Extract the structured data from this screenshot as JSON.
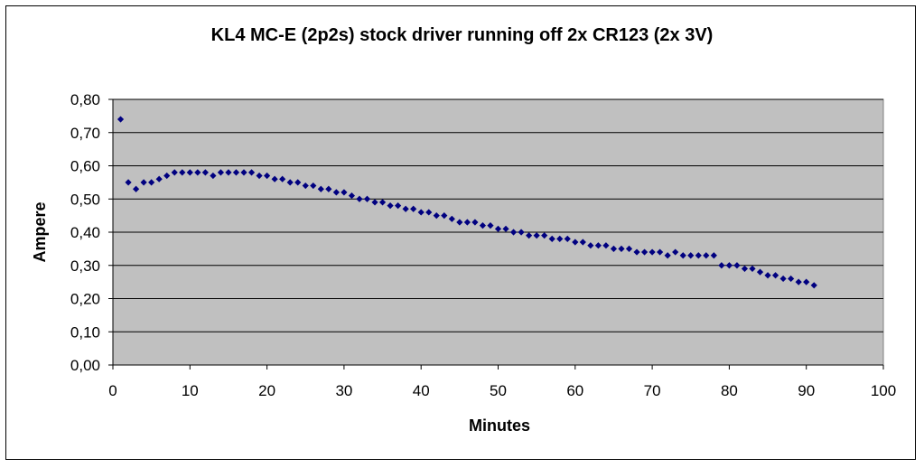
{
  "chart_data": {
    "type": "scatter",
    "title": "KL4  MC-E (2p2s) stock driver running off 2x CR123 (2x 3V)",
    "xlabel": "Minutes",
    "ylabel": "Ampere",
    "xlim": [
      0,
      100
    ],
    "ylim": [
      0,
      0.8
    ],
    "x_ticks": [
      "0",
      "10",
      "20",
      "30",
      "40",
      "50",
      "60",
      "70",
      "80",
      "90",
      "100"
    ],
    "y_ticks": [
      "0,00",
      "0,10",
      "0,20",
      "0,30",
      "0,40",
      "0,50",
      "0,60",
      "0,70",
      "0,80"
    ],
    "grid": "horizontal",
    "legend": "none",
    "plot_background": "#c0c0c0",
    "marker_color": "#000080",
    "x": [
      1,
      2,
      3,
      4,
      5,
      6,
      7,
      8,
      9,
      10,
      11,
      12,
      13,
      14,
      15,
      16,
      17,
      18,
      19,
      20,
      21,
      22,
      23,
      24,
      25,
      26,
      27,
      28,
      29,
      30,
      31,
      32,
      33,
      34,
      35,
      36,
      37,
      38,
      39,
      40,
      41,
      42,
      43,
      44,
      45,
      46,
      47,
      48,
      49,
      50,
      51,
      52,
      53,
      54,
      55,
      56,
      57,
      58,
      59,
      60,
      61,
      62,
      63,
      64,
      65,
      66,
      67,
      68,
      69,
      70,
      71,
      72,
      73,
      74,
      75,
      76,
      77,
      78,
      79,
      80,
      81,
      82,
      83,
      84,
      85,
      86,
      87,
      88,
      89,
      90,
      91
    ],
    "y": [
      0.74,
      0.55,
      0.53,
      0.55,
      0.55,
      0.56,
      0.57,
      0.58,
      0.58,
      0.58,
      0.58,
      0.58,
      0.57,
      0.58,
      0.58,
      0.58,
      0.58,
      0.58,
      0.57,
      0.57,
      0.56,
      0.56,
      0.55,
      0.55,
      0.54,
      0.54,
      0.53,
      0.53,
      0.52,
      0.52,
      0.51,
      0.5,
      0.5,
      0.49,
      0.49,
      0.48,
      0.48,
      0.47,
      0.47,
      0.46,
      0.46,
      0.45,
      0.45,
      0.44,
      0.43,
      0.43,
      0.43,
      0.42,
      0.42,
      0.41,
      0.41,
      0.4,
      0.4,
      0.39,
      0.39,
      0.39,
      0.38,
      0.38,
      0.38,
      0.37,
      0.37,
      0.36,
      0.36,
      0.36,
      0.35,
      0.35,
      0.35,
      0.34,
      0.34,
      0.34,
      0.34,
      0.33,
      0.34,
      0.33,
      0.33,
      0.33,
      0.33,
      0.33,
      0.3,
      0.3,
      0.3,
      0.29,
      0.29,
      0.28,
      0.27,
      0.27,
      0.26,
      0.26,
      0.25,
      0.25,
      0.24
    ]
  }
}
